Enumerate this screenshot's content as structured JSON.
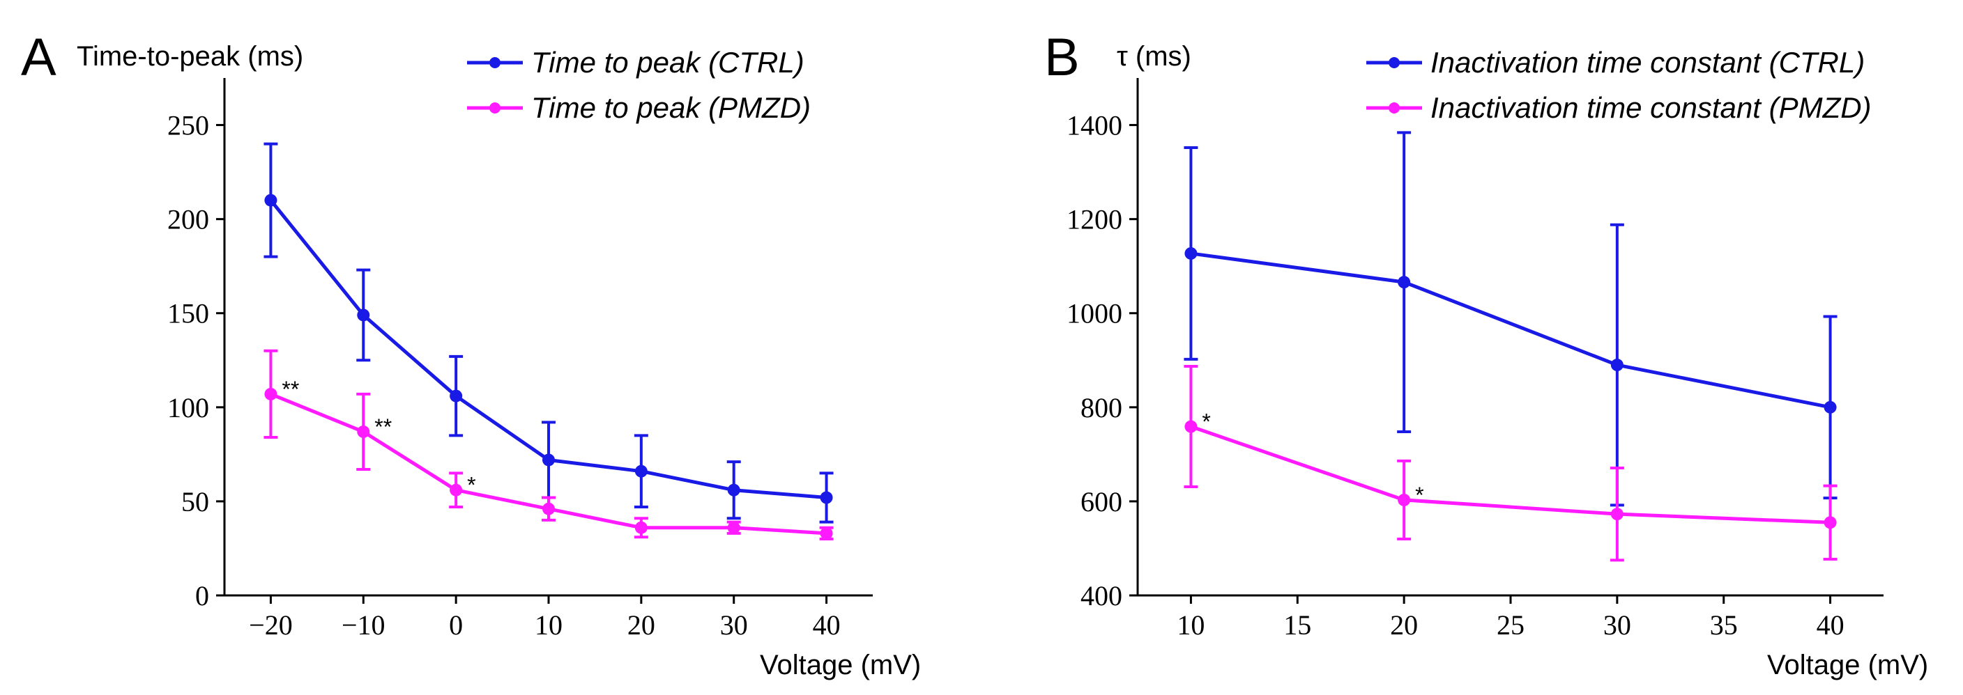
{
  "chart_data": [
    {
      "type": "line",
      "panel_label": "A",
      "ylabel": "Time-to-peak (ms)",
      "xlabel": "Voltage (mV)",
      "x": [
        -20,
        -10,
        0,
        10,
        20,
        30,
        40
      ],
      "x_tick_labels": [
        "−20",
        "−10",
        "0",
        "10",
        "20",
        "30",
        "40"
      ],
      "xlim": [
        -25,
        45
      ],
      "ylim": [
        0,
        275
      ],
      "y_ticks": [
        0,
        50,
        100,
        150,
        200,
        250
      ],
      "y_tick_labels": [
        "0",
        "50",
        "100",
        "150",
        "200",
        "250"
      ],
      "series": [
        {
          "name": "Time to peak (CTRL)",
          "color": "#1a1ae6",
          "values": [
            210,
            149,
            106,
            72,
            66,
            56,
            52
          ],
          "errors": [
            30,
            24,
            21,
            20,
            19,
            15,
            13
          ]
        },
        {
          "name": "Time to peak (PMZD)",
          "color": "#ff1aff",
          "values": [
            107,
            87,
            56,
            46,
            36,
            36,
            33
          ],
          "errors": [
            23,
            20,
            9,
            6,
            5,
            3,
            3
          ]
        }
      ],
      "annotations": [
        {
          "x": -20,
          "y": 107,
          "text": "**"
        },
        {
          "x": -10,
          "y": 87,
          "text": "**"
        },
        {
          "x": 0,
          "y": 56,
          "text": "*"
        }
      ]
    },
    {
      "type": "line",
      "panel_label": "B",
      "ylabel": "τ (ms)",
      "xlabel": "Voltage (mV)",
      "x": [
        10,
        20,
        30,
        40
      ],
      "x_ticks": [
        10,
        15,
        20,
        25,
        30,
        35,
        40
      ],
      "x_tick_labels": [
        "10",
        "15",
        "20",
        "25",
        "30",
        "35",
        "40"
      ],
      "xlim": [
        7.5,
        42.5
      ],
      "ylim": [
        400,
        1500
      ],
      "y_ticks": [
        400,
        600,
        800,
        1000,
        1200,
        1400
      ],
      "y_tick_labels": [
        "400",
        "600",
        "800",
        "1000",
        "1200",
        "1400"
      ],
      "series": [
        {
          "name": "Inactivation time constant (CTRL)",
          "color": "#1a1ae6",
          "values": [
            1127,
            1066,
            890,
            800
          ],
          "errors": [
            225,
            318,
            298,
            193
          ]
        },
        {
          "name": "Inactivation time constant (PMZD)",
          "color": "#ff1aff",
          "values": [
            759,
            603,
            573,
            555
          ],
          "errors": [
            128,
            83,
            98,
            78
          ]
        }
      ],
      "annotations": [
        {
          "x": 10,
          "y": 759,
          "text": "*"
        },
        {
          "x": 20,
          "y": 603,
          "text": "*"
        }
      ]
    }
  ]
}
